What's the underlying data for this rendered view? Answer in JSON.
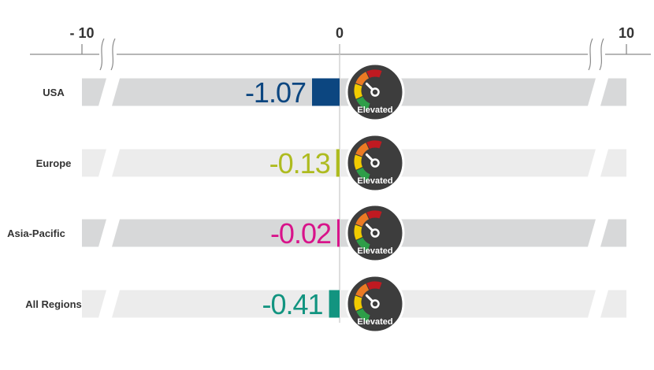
{
  "chart_data": {
    "type": "bar",
    "xlim": [
      -10,
      10
    ],
    "x_ticks": [
      {
        "value": -10,
        "label": "- 10"
      },
      {
        "value": 0,
        "label": "0"
      },
      {
        "value": 10,
        "label": "10"
      }
    ],
    "categories": [
      "USA",
      "Europe",
      "Asia-Pacific",
      "All Regions"
    ],
    "values": [
      -1.07,
      -0.13,
      -0.02,
      -0.41
    ],
    "value_labels": [
      "-1.07",
      "-0.13",
      "-0.02",
      "-0.41"
    ],
    "bar_colors": [
      "#0c4680",
      "#aebb1f",
      "#d8138a",
      "#129480"
    ],
    "track_colors": [
      "#d7d8d9",
      "#ececec",
      "#d7d8d9",
      "#ececec"
    ],
    "gauges": [
      {
        "label": "Elevated"
      },
      {
        "label": "Elevated"
      },
      {
        "label": "Elevated"
      },
      {
        "label": "Elevated"
      }
    ],
    "gauge_colors": [
      "#2e9e48",
      "#f2cb00",
      "#ec7a23",
      "#c01a21"
    ],
    "axis_breaks": "scale break near both ends of the axis"
  }
}
